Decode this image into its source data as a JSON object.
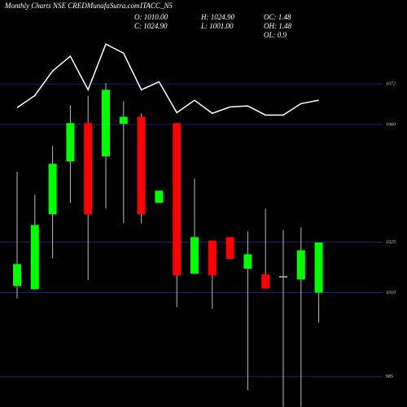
{
  "header": {
    "site": "Monthly Charts NSE CREDMunafaSutra.com",
    "symbol": "ITACC_N5",
    "open": "O: 1010.00",
    "close": "C: 1024.90",
    "high": "H: 1024.90",
    "low": "L: 1001.00",
    "oc": "OC: 1.48",
    "oh": "OH: 1.48",
    "ol": "OL: 0.9"
  },
  "chart_data": {
    "type": "candlestick",
    "open": [
      1012.0,
      1011.0,
      1033.3,
      1049.0,
      1060.4,
      1050.5,
      1060.2,
      1062.3,
      1036.7,
      1060.4,
      1015.6,
      1025.5,
      1026.5,
      1017.1,
      1015.4,
      1014.9,
      1013.9,
      1010.0
    ],
    "close": [
      1018.5,
      1030.1,
      1048.3,
      1060.4,
      1033.3,
      1070.3,
      1062.3,
      1033.3,
      1040.3,
      1015.1,
      1026.5,
      1015.1,
      1020.0,
      1021.4,
      1011.2,
      1014.9,
      1022.6,
      1024.9
    ],
    "high": [
      1045.9,
      1039.1,
      1053.6,
      1065.7,
      1068.6,
      1072.3,
      1066.9,
      1063.3,
      1040.3,
      1060.4,
      1043.9,
      1025.5,
      1026.5,
      1028.2,
      1035.0,
      1028.7,
      1029.4,
      1024.9
    ],
    "low": [
      1008.3,
      1011.0,
      1020.2,
      1036.7,
      1013.7,
      1035.0,
      1030.6,
      1030.6,
      1036.7,
      1005.7,
      1015.6,
      1005.2,
      1020.0,
      981.0,
      1011.2,
      976.1,
      976.1,
      1001.0
    ],
    "up_color": "#00ff00",
    "down_color": "#ff0000",
    "line": {
      "color": "#ffffff",
      "values": [
        1065.0,
        1068.6,
        1075.9,
        1080.3,
        1070.3,
        1083.9,
        1081.2,
        1070.3,
        1072.7,
        1063.5,
        1067.2,
        1063.3,
        1065.2,
        1065.5,
        1062.8,
        1062.8,
        1066.2,
        1067.2
      ]
    },
    "ylim": [
      976,
      1097
    ],
    "yticks": [
      1072,
      1060,
      1025,
      1010,
      985
    ],
    "grid": true,
    "grid_color": "#1c1c7a"
  }
}
